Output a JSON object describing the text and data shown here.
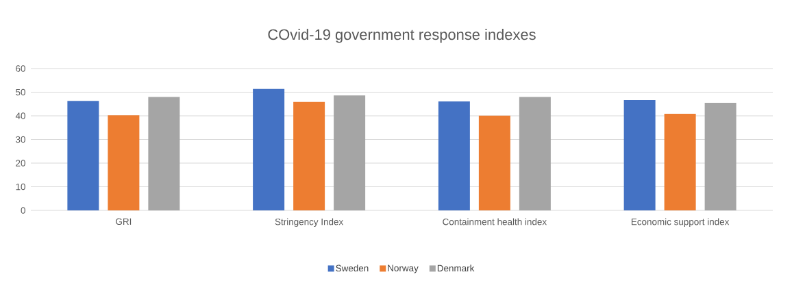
{
  "chart_data": {
    "type": "bar",
    "title": "COvid-19 government response indexes",
    "categories": [
      "GRI",
      "Stringency Index",
      "Containment health index",
      "Economic support index"
    ],
    "series": [
      {
        "name": "Sweden",
        "color": "#4472c4",
        "values": [
          46.3,
          51.4,
          46.1,
          46.7
        ]
      },
      {
        "name": "Norway",
        "color": "#ed7d31",
        "values": [
          40.2,
          45.9,
          40.1,
          40.9
        ]
      },
      {
        "name": "Denmark",
        "color": "#a5a5a5",
        "values": [
          48.0,
          48.6,
          48.0,
          45.5
        ]
      }
    ],
    "ylim": [
      0,
      60
    ],
    "yticks": [
      0,
      10,
      20,
      30,
      40,
      50,
      60
    ],
    "grid": "y",
    "legend": "bottom"
  }
}
